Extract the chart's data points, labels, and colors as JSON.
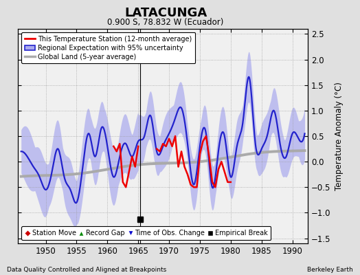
{
  "title": "LATACUNGA",
  "subtitle": "0.900 S, 78.832 W (Ecuador)",
  "ylabel": "Temperature Anomaly (°C)",
  "xlabel_bottom": "Data Quality Controlled and Aligned at Breakpoints",
  "xlabel_right": "Berkeley Earth",
  "ylim": [
    -1.6,
    2.6
  ],
  "xlim": [
    1945.5,
    1992.5
  ],
  "xticks": [
    1950,
    1955,
    1960,
    1965,
    1970,
    1975,
    1980,
    1985,
    1990
  ],
  "yticks": [
    -1.5,
    -1.0,
    -0.5,
    0.0,
    0.5,
    1.0,
    1.5,
    2.0,
    2.5
  ],
  "background_color": "#e0e0e0",
  "plot_bg_color": "#f0f0f0",
  "regional_color": "#2222cc",
  "regional_fill_color": "#aaaaee",
  "station_color": "#ee0000",
  "global_color": "#aaaaaa",
  "empirical_break_year": 1965.3,
  "legend_labels": [
    "This Temperature Station (12-month average)",
    "Regional Expectation with 95% uncertainty",
    "Global Land (5-year average)"
  ],
  "legend_colors": [
    "#ee0000",
    "#2222cc",
    "#aaaaaa"
  ],
  "legend_fill_color": "#aaaaee",
  "marker_legend": [
    {
      "label": "Station Move",
      "color": "#cc0000",
      "marker": "D"
    },
    {
      "label": "Record Gap",
      "color": "#008800",
      "marker": "^"
    },
    {
      "label": "Time of Obs. Change",
      "color": "#0000cc",
      "marker": "v"
    },
    {
      "label": "Empirical Break",
      "color": "#000000",
      "marker": "s"
    }
  ]
}
